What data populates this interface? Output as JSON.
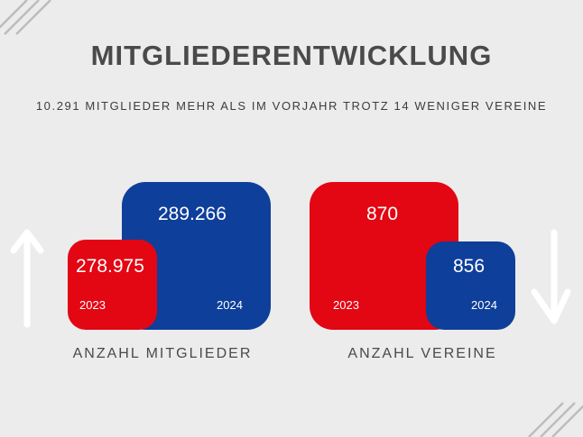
{
  "title": "MITGLIEDERENTWICKLUNG",
  "subtitle": "10.291 MITGLIEDER MEHR ALS IM VORJAHR TROTZ 14 WENIGER VEREINE",
  "members": {
    "label": "ANZAHL MITGLIEDER",
    "y2023": {
      "year": "2023",
      "value": "278.975"
    },
    "y2024": {
      "year": "2024",
      "value": "289.266"
    },
    "trend": "up"
  },
  "clubs": {
    "label": "ANZAHL VEREINE",
    "y2023": {
      "year": "2023",
      "value": "870"
    },
    "y2024": {
      "year": "2024",
      "value": "856"
    },
    "trend": "down"
  },
  "colors": {
    "red": "#e30613",
    "blue": "#0e3f9a",
    "background": "#ececec"
  }
}
